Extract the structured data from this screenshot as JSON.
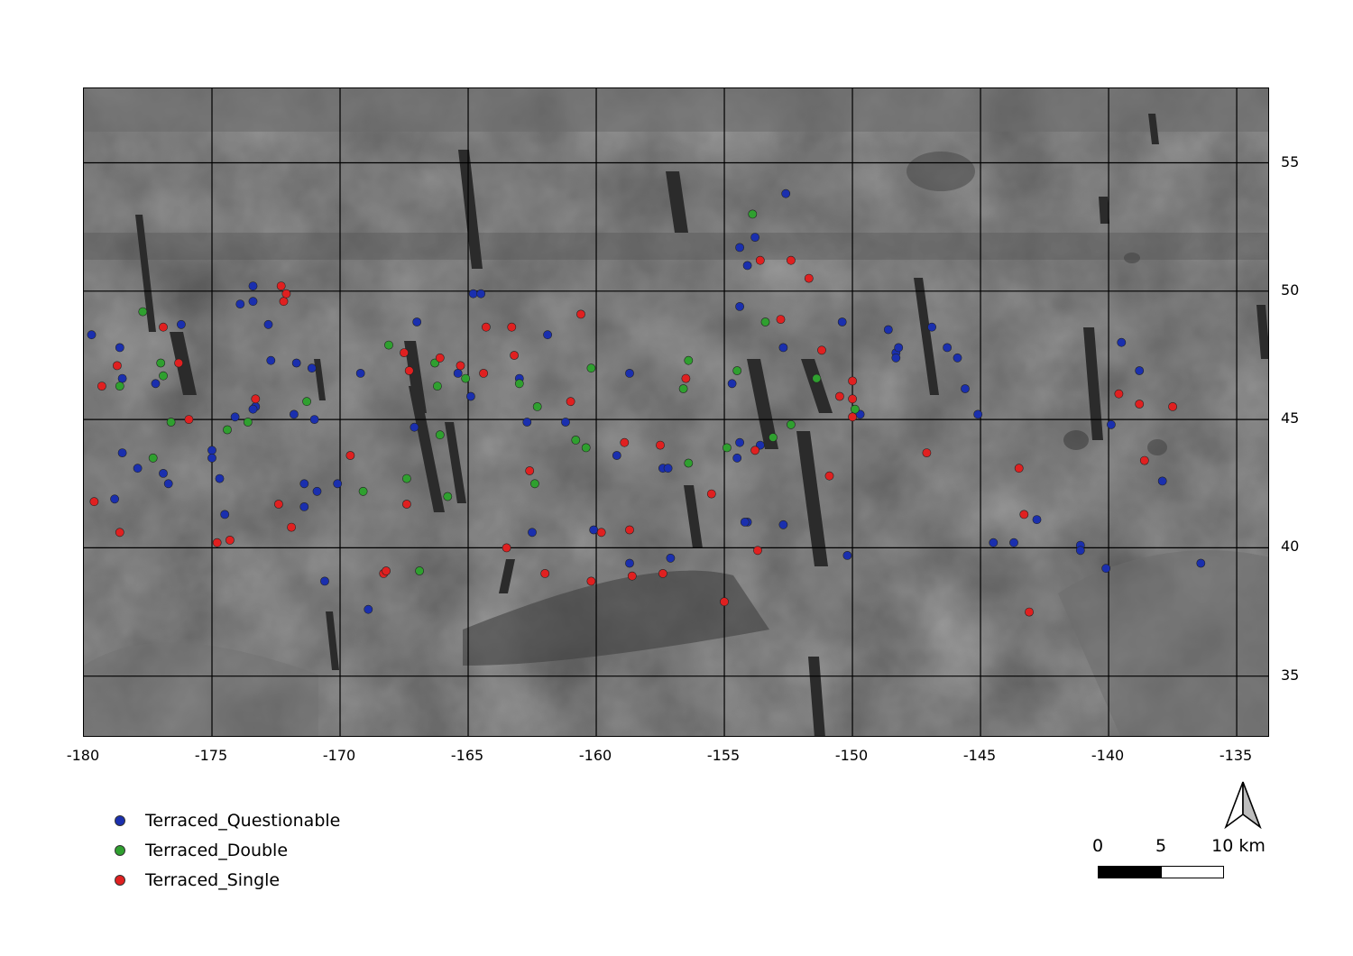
{
  "map": {
    "x_ticks": [
      "-180",
      "-175",
      "-170",
      "-165",
      "-160",
      "-155",
      "-150",
      "-145",
      "-140",
      "-135"
    ],
    "y_ticks": [
      "55",
      "50",
      "45",
      "40",
      "35"
    ],
    "x_range": [
      -180,
      -133.7
    ],
    "y_range": [
      32.6,
      57.9
    ],
    "x_tick_values": [
      -180,
      -175,
      -170,
      -165,
      -160,
      -155,
      -150,
      -145,
      -140,
      -135
    ],
    "y_tick_values": [
      55,
      50,
      45,
      40,
      35
    ],
    "grid": true
  },
  "colors": {
    "questionable": "#1a2fae",
    "double": "#2fa02f",
    "single": "#e02020",
    "basemap": "#5a5a5a"
  },
  "legend": {
    "items": [
      {
        "label": "Terraced_Questionable",
        "color": "#1a2fae"
      },
      {
        "label": "Terraced_Double",
        "color": "#2fa02f"
      },
      {
        "label": "Terraced_Single",
        "color": "#e02020"
      }
    ]
  },
  "scale": {
    "labels": [
      "0",
      "5",
      "10 km"
    ]
  },
  "north_arrow_icon": "north-arrow-icon",
  "chart_data": {
    "type": "scatter",
    "xlim": [
      -180,
      -133.7
    ],
    "ylim": [
      32.6,
      57.9
    ],
    "series": [
      {
        "name": "Terraced_Questionable",
        "color": "#1a2fae",
        "points": [
          [
            -179.7,
            48.3
          ],
          [
            -178.6,
            47.8
          ],
          [
            -178.5,
            46.6
          ],
          [
            -178.5,
            43.7
          ],
          [
            -178.8,
            41.9
          ],
          [
            -177.9,
            43.1
          ],
          [
            -177.2,
            46.4
          ],
          [
            -176.9,
            42.9
          ],
          [
            -176.7,
            42.5
          ],
          [
            -176.2,
            48.7
          ],
          [
            -175.0,
            43.8
          ],
          [
            -175.0,
            43.5
          ],
          [
            -174.7,
            42.7
          ],
          [
            -174.5,
            41.3
          ],
          [
            -174.1,
            45.1
          ],
          [
            -173.9,
            49.5
          ],
          [
            -173.4,
            50.2
          ],
          [
            -173.4,
            49.6
          ],
          [
            -173.3,
            45.5
          ],
          [
            -173.4,
            45.4
          ],
          [
            -172.8,
            48.7
          ],
          [
            -172.7,
            47.3
          ],
          [
            -171.8,
            45.2
          ],
          [
            -171.7,
            47.2
          ],
          [
            -171.4,
            42.5
          ],
          [
            -171.4,
            41.6
          ],
          [
            -171.1,
            47.0
          ],
          [
            -171.0,
            45.0
          ],
          [
            -170.9,
            42.2
          ],
          [
            -170.1,
            42.5
          ],
          [
            -170.6,
            38.7
          ],
          [
            -169.2,
            46.8
          ],
          [
            -168.9,
            37.6
          ],
          [
            -167.0,
            48.8
          ],
          [
            -167.1,
            44.7
          ],
          [
            -165.4,
            46.8
          ],
          [
            -164.9,
            45.9
          ],
          [
            -164.8,
            49.9
          ],
          [
            -164.5,
            49.9
          ],
          [
            -163.0,
            46.6
          ],
          [
            -162.7,
            44.9
          ],
          [
            -162.5,
            40.6
          ],
          [
            -161.9,
            48.3
          ],
          [
            -161.2,
            44.9
          ],
          [
            -160.1,
            40.7
          ],
          [
            -159.2,
            43.6
          ],
          [
            -158.7,
            46.8
          ],
          [
            -158.7,
            39.4
          ],
          [
            -157.4,
            43.1
          ],
          [
            -157.2,
            43.1
          ],
          [
            -157.1,
            39.6
          ],
          [
            -154.7,
            46.4
          ],
          [
            -154.4,
            44.1
          ],
          [
            -154.5,
            43.5
          ],
          [
            -154.1,
            41.0
          ],
          [
            -154.2,
            41.0
          ],
          [
            -154.4,
            51.7
          ],
          [
            -154.1,
            51.0
          ],
          [
            -153.8,
            52.1
          ],
          [
            -154.4,
            49.4
          ],
          [
            -153.6,
            44.0
          ],
          [
            -152.6,
            53.8
          ],
          [
            -152.7,
            47.8
          ],
          [
            -152.7,
            40.9
          ],
          [
            -150.4,
            48.8
          ],
          [
            -150.2,
            39.7
          ],
          [
            -149.7,
            45.2
          ],
          [
            -148.6,
            48.5
          ],
          [
            -148.3,
            47.6
          ],
          [
            -148.3,
            47.4
          ],
          [
            -148.2,
            47.8
          ],
          [
            -146.9,
            48.6
          ],
          [
            -146.3,
            47.8
          ],
          [
            -145.9,
            47.4
          ],
          [
            -145.6,
            46.2
          ],
          [
            -145.1,
            45.2
          ],
          [
            -144.5,
            40.2
          ],
          [
            -143.7,
            40.2
          ],
          [
            -142.8,
            41.1
          ],
          [
            -141.1,
            40.1
          ],
          [
            -141.1,
            39.9
          ],
          [
            -140.1,
            39.2
          ],
          [
            -139.9,
            44.8
          ],
          [
            -139.5,
            48.0
          ],
          [
            -138.8,
            46.9
          ],
          [
            -137.9,
            42.6
          ],
          [
            -136.4,
            39.4
          ]
        ]
      },
      {
        "name": "Terraced_Double",
        "color": "#2fa02f",
        "points": [
          [
            -177.7,
            49.2
          ],
          [
            -178.6,
            46.3
          ],
          [
            -177.0,
            47.2
          ],
          [
            -176.9,
            46.7
          ],
          [
            -176.6,
            44.9
          ],
          [
            -177.3,
            43.5
          ],
          [
            -174.4,
            44.6
          ],
          [
            -173.6,
            44.9
          ],
          [
            -171.3,
            45.7
          ],
          [
            -169.1,
            42.2
          ],
          [
            -168.1,
            47.9
          ],
          [
            -167.4,
            42.7
          ],
          [
            -166.9,
            39.1
          ],
          [
            -166.3,
            47.2
          ],
          [
            -166.2,
            46.3
          ],
          [
            -166.1,
            44.4
          ],
          [
            -165.8,
            42.0
          ],
          [
            -165.1,
            46.6
          ],
          [
            -163.0,
            46.4
          ],
          [
            -162.3,
            45.5
          ],
          [
            -162.4,
            42.5
          ],
          [
            -160.8,
            44.2
          ],
          [
            -160.4,
            43.9
          ],
          [
            -160.2,
            47.0
          ],
          [
            -156.6,
            46.2
          ],
          [
            -156.4,
            43.3
          ],
          [
            -156.4,
            47.3
          ],
          [
            -154.9,
            43.9
          ],
          [
            -154.5,
            46.9
          ],
          [
            -153.9,
            53.0
          ],
          [
            -153.4,
            48.8
          ],
          [
            -153.1,
            44.3
          ],
          [
            -152.4,
            44.8
          ],
          [
            -151.4,
            46.6
          ],
          [
            -149.9,
            45.4
          ]
        ]
      },
      {
        "name": "Terraced_Single",
        "color": "#e02020",
        "points": [
          [
            -179.3,
            46.3
          ],
          [
            -178.7,
            47.1
          ],
          [
            -179.6,
            41.8
          ],
          [
            -178.6,
            40.6
          ],
          [
            -176.9,
            48.6
          ],
          [
            -176.3,
            47.2
          ],
          [
            -175.9,
            45.0
          ],
          [
            -174.8,
            40.2
          ],
          [
            -174.3,
            40.3
          ],
          [
            -173.3,
            45.8
          ],
          [
            -172.3,
            50.2
          ],
          [
            -172.2,
            49.6
          ],
          [
            -172.1,
            49.9
          ],
          [
            -172.4,
            41.7
          ],
          [
            -171.9,
            40.8
          ],
          [
            -169.6,
            43.6
          ],
          [
            -168.3,
            39.0
          ],
          [
            -168.2,
            39.1
          ],
          [
            -167.5,
            47.6
          ],
          [
            -167.3,
            46.9
          ],
          [
            -166.1,
            47.4
          ],
          [
            -167.4,
            41.7
          ],
          [
            -165.3,
            47.1
          ],
          [
            -164.3,
            48.6
          ],
          [
            -164.4,
            46.8
          ],
          [
            -163.3,
            48.6
          ],
          [
            -163.2,
            47.5
          ],
          [
            -163.5,
            40.0
          ],
          [
            -162.6,
            43.0
          ],
          [
            -162.0,
            39.0
          ],
          [
            -161.0,
            45.7
          ],
          [
            -160.6,
            49.1
          ],
          [
            -160.2,
            38.7
          ],
          [
            -159.8,
            40.6
          ],
          [
            -158.9,
            44.1
          ],
          [
            -158.7,
            40.7
          ],
          [
            -158.6,
            38.9
          ],
          [
            -157.4,
            39.0
          ],
          [
            -157.5,
            44.0
          ],
          [
            -156.5,
            46.6
          ],
          [
            -155.5,
            42.1
          ],
          [
            -155.0,
            37.9
          ],
          [
            -153.7,
            39.9
          ],
          [
            -153.8,
            43.8
          ],
          [
            -153.6,
            51.2
          ],
          [
            -152.4,
            51.2
          ],
          [
            -152.8,
            48.9
          ],
          [
            -151.7,
            50.5
          ],
          [
            -151.2,
            47.7
          ],
          [
            -150.9,
            42.8
          ],
          [
            -150.5,
            45.9
          ],
          [
            -150.0,
            46.5
          ],
          [
            -150.0,
            45.8
          ],
          [
            -150.0,
            45.1
          ],
          [
            -147.1,
            43.7
          ],
          [
            -143.5,
            43.1
          ],
          [
            -143.3,
            41.3
          ],
          [
            -143.1,
            37.5
          ],
          [
            -139.6,
            46.0
          ],
          [
            -138.8,
            45.6
          ],
          [
            -138.6,
            43.4
          ],
          [
            -137.5,
            45.5
          ]
        ]
      }
    ]
  }
}
